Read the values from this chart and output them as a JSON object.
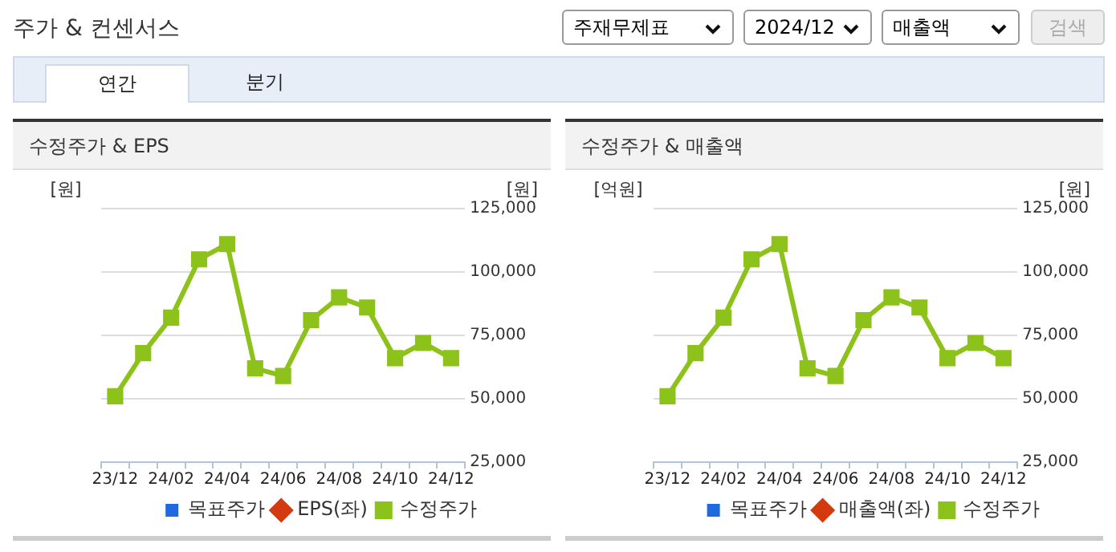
{
  "chart_data": [
    {
      "type": "other",
      "title": "주가 & 컨센서스",
      "annotations": [
        "주재무제표",
        "2024/12",
        "매출액",
        "검색",
        "연간",
        "분기"
      ]
    },
    {
      "type": "line",
      "title": "수정주가 & EPS",
      "ylabel": "[원]",
      "y2label": "[원]",
      "categories": [
        "23/12",
        null,
        "24/02",
        null,
        "24/04",
        null,
        "24/06",
        null,
        "24/08",
        null,
        "24/10",
        null,
        "24/12"
      ],
      "y2lim": [
        25000,
        125000
      ],
      "y2ticks": [
        {
          "value": 25000,
          "label": "25,000"
        },
        {
          "value": 50000,
          "label": "50,000"
        },
        {
          "value": 75000,
          "label": "75,000"
        },
        {
          "value": 100000,
          "label": "100,000"
        },
        {
          "value": 125000,
          "label": "125,000"
        }
      ],
      "grid": "y",
      "legend": "bottom",
      "series": [
        {
          "name": "목표주가",
          "type": "bar",
          "color": "#1e6ae0",
          "values": [
            null,
            null,
            null,
            null,
            null,
            null,
            null,
            null,
            null,
            null,
            null,
            null,
            null
          ]
        },
        {
          "name": "EPS(좌)",
          "type": "line",
          "color": "#d43a0f",
          "marker": "diamond",
          "values": [
            null,
            null,
            null,
            null,
            null,
            null,
            null,
            null,
            null,
            null,
            null,
            null,
            null
          ]
        },
        {
          "name": "수정주가",
          "type": "line",
          "color": "#8cc21a",
          "marker": "square",
          "axis": "y2",
          "values": [
            51000,
            68000,
            82000,
            105000,
            111000,
            62000,
            59000,
            81000,
            90000,
            86000,
            66000,
            72000,
            66000
          ]
        }
      ]
    },
    {
      "type": "line",
      "title": "수정주가 & 매출액",
      "ylabel": "[억원]",
      "y2label": "[원]",
      "categories": [
        "23/12",
        null,
        "24/02",
        null,
        "24/04",
        null,
        "24/06",
        null,
        "24/08",
        null,
        "24/10",
        null,
        "24/12"
      ],
      "y2lim": [
        25000,
        125000
      ],
      "y2ticks": [
        {
          "value": 25000,
          "label": "25,000"
        },
        {
          "value": 50000,
          "label": "50,000"
        },
        {
          "value": 75000,
          "label": "75,000"
        },
        {
          "value": 100000,
          "label": "100,000"
        },
        {
          "value": 125000,
          "label": "125,000"
        }
      ],
      "grid": "y",
      "legend": "bottom",
      "series": [
        {
          "name": "목표주가",
          "type": "bar",
          "color": "#1e6ae0",
          "values": [
            null,
            null,
            null,
            null,
            null,
            null,
            null,
            null,
            null,
            null,
            null,
            null,
            null
          ]
        },
        {
          "name": "매출액(좌)",
          "type": "line",
          "color": "#d43a0f",
          "marker": "diamond",
          "values": [
            null,
            null,
            null,
            null,
            null,
            null,
            null,
            null,
            null,
            null,
            null,
            null,
            null
          ]
        },
        {
          "name": "수정주가",
          "type": "line",
          "color": "#8cc21a",
          "marker": "square",
          "axis": "y2",
          "values": [
            51000,
            68000,
            82000,
            105000,
            111000,
            62000,
            59000,
            81000,
            90000,
            86000,
            66000,
            72000,
            66000
          ]
        }
      ]
    }
  ]
}
